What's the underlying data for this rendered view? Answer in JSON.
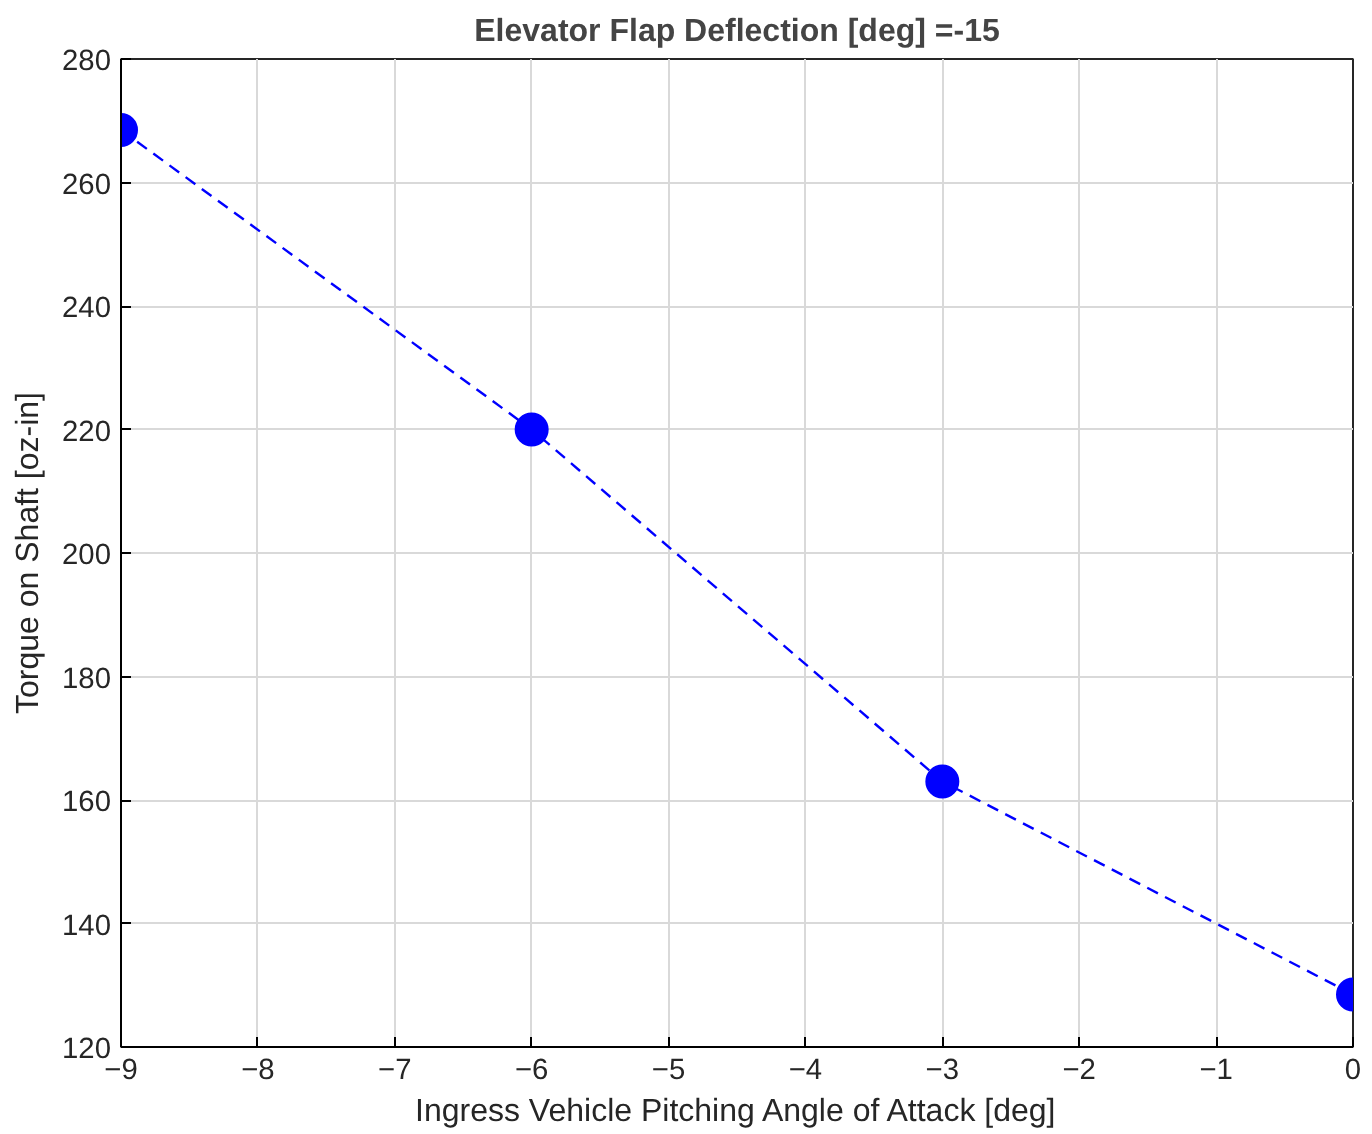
{
  "chart_data": {
    "type": "line",
    "title": "Elevator Flap Deflection [deg] =-15",
    "xlabel": "Ingress Vehicle Pitching Angle of Attack [deg]",
    "ylabel": "Torque on Shaft [oz-in]",
    "x": [
      -9,
      -6,
      -3,
      0
    ],
    "series": [
      {
        "color": "#0000ff",
        "values": [
          268.5,
          220,
          163,
          128.5
        ]
      }
    ],
    "xlim": [
      -9,
      0
    ],
    "xticks": [
      -9,
      -8,
      -7,
      -6,
      -5,
      -4,
      -3,
      -2,
      -1,
      0
    ],
    "ylim": [
      120,
      280
    ],
    "yticks": [
      120,
      140,
      160,
      180,
      200,
      220,
      240,
      260,
      280
    ],
    "grid": true,
    "marker": "circle",
    "line_style": "dashed"
  }
}
